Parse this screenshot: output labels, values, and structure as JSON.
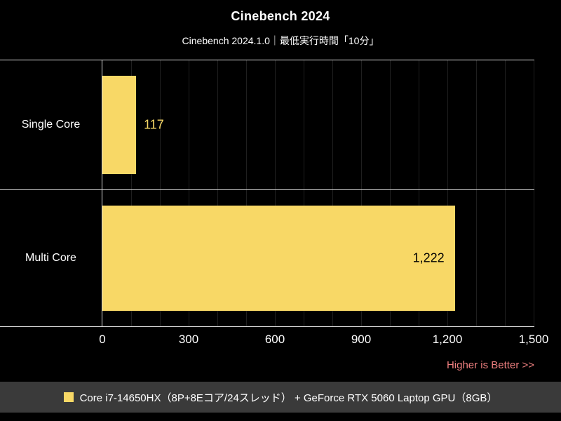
{
  "title": "Cinebench 2024",
  "subtitle": "Cinebench 2024.1.0｜最低実行時間「10分」",
  "note": "Higher is Better >>",
  "legend": {
    "label": "Core i7-14650HX（8P+8Eコア/24スレッド） + GeForce RTX 5060 Laptop GPU（8GB）"
  },
  "chart_data": {
    "type": "bar",
    "orientation": "horizontal",
    "title": "Cinebench 2024",
    "subtitle": "Cinebench 2024.1.0｜最低実行時間「10分」",
    "categories": [
      "Single Core",
      "Multi Core"
    ],
    "values": [
      117,
      1222
    ],
    "value_labels": [
      "117",
      "1,222"
    ],
    "xlim": [
      0,
      1500
    ],
    "xticks": [
      0,
      300,
      600,
      900,
      1200,
      1500
    ],
    "xtick_labels": [
      "0",
      "300",
      "600",
      "900",
      "1,200",
      "1,500"
    ],
    "minor_grid_step": 100,
    "grid": true,
    "legend_position": "bottom",
    "annotation": "Higher is Better >>"
  },
  "colors": {
    "background": "#000000",
    "bar": "#f8d866",
    "grid": "#1f1f1f",
    "axis_line": "#dcdcdc",
    "text": "#ffffff",
    "note": "#f08080",
    "legend_bg": "#3a3a3a",
    "value_inside": "#000000",
    "value_outside": "#f8d866"
  }
}
